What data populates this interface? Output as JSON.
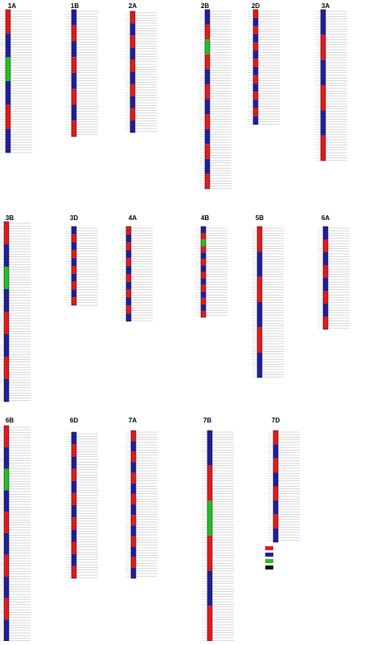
{
  "chromosomes": [
    {
      "name": "1A"
    },
    {
      "name": "1B"
    },
    {
      "name": "2A"
    },
    {
      "name": "2B"
    },
    {
      "name": "2D"
    },
    {
      "name": "3A"
    },
    {
      "name": "3B"
    },
    {
      "name": "3D"
    },
    {
      "name": "4A"
    },
    {
      "name": "4B"
    },
    {
      "name": "5B"
    },
    {
      "name": "6A"
    },
    {
      "name": "6B"
    },
    {
      "name": "6D"
    },
    {
      "name": "7A"
    },
    {
      "name": "7B"
    },
    {
      "name": "7D"
    }
  ]
}
